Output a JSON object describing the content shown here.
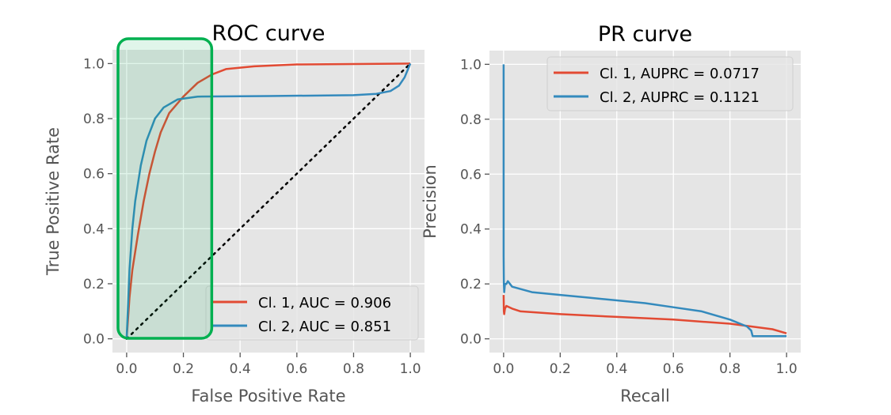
{
  "chart_data": [
    {
      "type": "line",
      "title": "ROC curve",
      "xlabel": "False Positive Rate",
      "ylabel": "True Positive Rate",
      "xlim": [
        -0.05,
        1.05
      ],
      "ylim": [
        -0.05,
        1.05
      ],
      "xticks": [
        "0.0",
        "0.2",
        "0.4",
        "0.6",
        "0.8",
        "1.0"
      ],
      "yticks": [
        "0.0",
        "0.2",
        "0.4",
        "0.6",
        "0.8",
        "1.0"
      ],
      "grid": true,
      "legend_position": "bottom-right",
      "series": [
        {
          "name": "Cl. 1, AUC = 0.906",
          "color": "#e24a33",
          "x": [
            0,
            0.01,
            0.02,
            0.04,
            0.06,
            0.08,
            0.1,
            0.12,
            0.15,
            0.2,
            0.25,
            0.3,
            0.35,
            0.45,
            0.6,
            1.0
          ],
          "y": [
            0,
            0.15,
            0.25,
            0.38,
            0.5,
            0.6,
            0.68,
            0.75,
            0.82,
            0.88,
            0.93,
            0.96,
            0.98,
            0.99,
            0.997,
            1.0
          ]
        },
        {
          "name": "Cl. 2, AUC = 0.851",
          "color": "#348abd",
          "x": [
            0,
            0.01,
            0.02,
            0.03,
            0.05,
            0.07,
            0.1,
            0.13,
            0.18,
            0.25,
            0.5,
            0.8,
            0.88,
            0.93,
            0.96,
            0.98,
            1.0
          ],
          "y": [
            0,
            0.25,
            0.4,
            0.5,
            0.63,
            0.72,
            0.8,
            0.84,
            0.87,
            0.88,
            0.882,
            0.885,
            0.89,
            0.9,
            0.92,
            0.95,
            1.0
          ]
        }
      ],
      "reference_line": {
        "x": [
          0,
          1
        ],
        "y": [
          0,
          1
        ],
        "style": "dotted",
        "color": "#000000"
      },
      "highlight": {
        "x_range": [
          -0.025,
          0.3
        ],
        "color": "#00b050"
      }
    },
    {
      "type": "line",
      "title": "PR curve",
      "xlabel": "Recall",
      "ylabel": "Precision",
      "xlim": [
        -0.05,
        1.05
      ],
      "ylim": [
        -0.05,
        1.05
      ],
      "xticks": [
        "0.0",
        "0.2",
        "0.4",
        "0.6",
        "0.8",
        "1.0"
      ],
      "yticks": [
        "0.0",
        "0.2",
        "0.4",
        "0.6",
        "0.8",
        "1.0"
      ],
      "grid": true,
      "legend_position": "top-right",
      "series": [
        {
          "name": "Cl. 1, AUPRC = 0.0717",
          "color": "#e24a33",
          "x": [
            0,
            0.001,
            0.002,
            0.005,
            0.01,
            0.03,
            0.06,
            0.2,
            0.4,
            0.6,
            0.8,
            0.95,
            1.0
          ],
          "y": [
            0.16,
            0.1,
            0.09,
            0.11,
            0.12,
            0.11,
            0.1,
            0.09,
            0.08,
            0.07,
            0.055,
            0.035,
            0.02
          ]
        },
        {
          "name": "Cl. 2, AUPRC = 0.1121",
          "color": "#348abd",
          "x": [
            0,
            0,
            0.001,
            0.002,
            0.005,
            0.01,
            0.015,
            0.03,
            0.1,
            0.2,
            0.3,
            0.4,
            0.5,
            0.6,
            0.7,
            0.8,
            0.86,
            0.875,
            0.88,
            1.0
          ],
          "y": [
            1.0,
            0.3,
            0.2,
            0.17,
            0.2,
            0.2,
            0.21,
            0.19,
            0.17,
            0.16,
            0.15,
            0.14,
            0.13,
            0.115,
            0.1,
            0.07,
            0.045,
            0.03,
            0.01,
            0.01
          ]
        }
      ]
    }
  ]
}
